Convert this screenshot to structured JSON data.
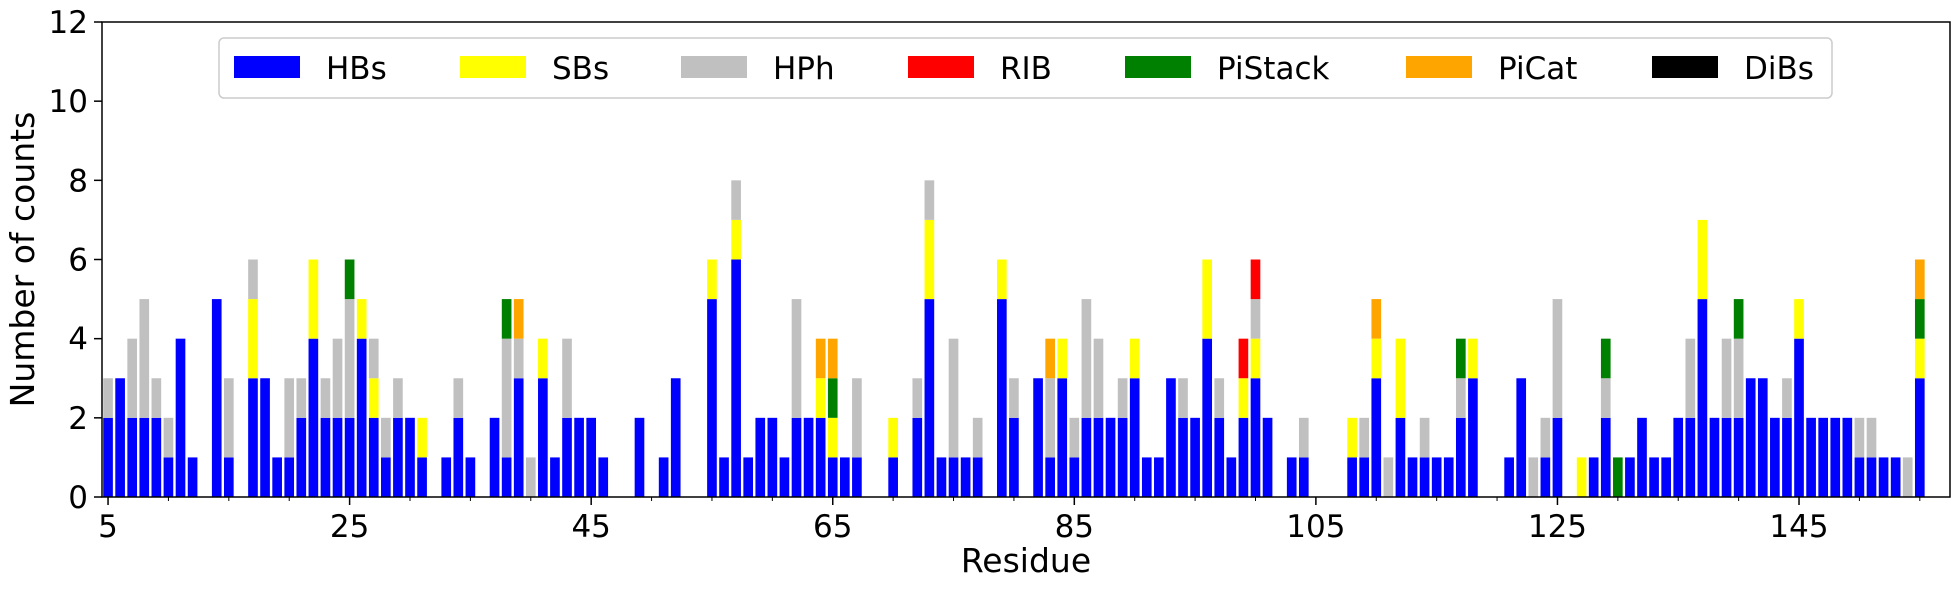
{
  "chart_data": {
    "type": "bar",
    "stacked": true,
    "xlabel": "Residue",
    "ylabel": "Number of counts",
    "xlim": [
      4.5,
      157.5
    ],
    "ylim": [
      0,
      12
    ],
    "x_ticks": [
      5,
      25,
      45,
      65,
      85,
      105,
      125,
      145
    ],
    "y_ticks": [
      0,
      2,
      4,
      6,
      8,
      10,
      12
    ],
    "grid": false,
    "legend_position": "top-center",
    "series": [
      {
        "name": "HBs",
        "color": "#0000ff"
      },
      {
        "name": "SBs",
        "color": "#ffff00"
      },
      {
        "name": "HPh",
        "color": "#c0c0c0"
      },
      {
        "name": "RIB",
        "color": "#ff0000"
      },
      {
        "name": "PiStack",
        "color": "#008000"
      },
      {
        "name": "PiCat",
        "color": "#ffa500"
      },
      {
        "name": "DiBs",
        "color": "#000000"
      }
    ],
    "bars": [
      {
        "x": 5,
        "HBs": 2,
        "HPh": 1
      },
      {
        "x": 6,
        "HBs": 3
      },
      {
        "x": 7,
        "HBs": 2,
        "HPh": 2
      },
      {
        "x": 8,
        "HBs": 2,
        "HPh": 3
      },
      {
        "x": 9,
        "HBs": 2,
        "HPh": 1
      },
      {
        "x": 10,
        "HBs": 1,
        "HPh": 1
      },
      {
        "x": 11,
        "HBs": 4
      },
      {
        "x": 12,
        "HBs": 1
      },
      {
        "x": 14,
        "HBs": 5
      },
      {
        "x": 15,
        "HBs": 1,
        "HPh": 2
      },
      {
        "x": 17,
        "HBs": 3,
        "SBs": 2,
        "HPh": 1
      },
      {
        "x": 18,
        "HBs": 3
      },
      {
        "x": 19,
        "HBs": 1
      },
      {
        "x": 20,
        "HBs": 1,
        "HPh": 2
      },
      {
        "x": 21,
        "HBs": 2,
        "HPh": 1
      },
      {
        "x": 22,
        "HBs": 4,
        "SBs": 2
      },
      {
        "x": 23,
        "HBs": 2,
        "HPh": 1
      },
      {
        "x": 24,
        "HBs": 2,
        "HPh": 2
      },
      {
        "x": 25,
        "HBs": 2,
        "HPh": 3,
        "PiStack": 1
      },
      {
        "x": 26,
        "HBs": 4,
        "SBs": 1
      },
      {
        "x": 27,
        "HBs": 2,
        "SBs": 1,
        "HPh": 1
      },
      {
        "x": 28,
        "HBs": 1,
        "HPh": 1
      },
      {
        "x": 29,
        "HBs": 2,
        "HPh": 1
      },
      {
        "x": 30,
        "HBs": 2
      },
      {
        "x": 31,
        "HBs": 1,
        "SBs": 1
      },
      {
        "x": 33,
        "HBs": 1
      },
      {
        "x": 34,
        "HBs": 2,
        "HPh": 1
      },
      {
        "x": 35,
        "HBs": 1
      },
      {
        "x": 37,
        "HBs": 2
      },
      {
        "x": 38,
        "HBs": 1,
        "HPh": 3,
        "PiStack": 1
      },
      {
        "x": 39,
        "HBs": 3,
        "HPh": 1,
        "PiCat": 1
      },
      {
        "x": 40,
        "HPh": 1
      },
      {
        "x": 41,
        "HBs": 3,
        "SBs": 1
      },
      {
        "x": 42,
        "HBs": 1
      },
      {
        "x": 43,
        "HBs": 2,
        "HPh": 2
      },
      {
        "x": 44,
        "HBs": 2
      },
      {
        "x": 45,
        "HBs": 2
      },
      {
        "x": 46,
        "HBs": 1
      },
      {
        "x": 49,
        "HBs": 2
      },
      {
        "x": 51,
        "HBs": 1
      },
      {
        "x": 52,
        "HBs": 3
      },
      {
        "x": 55,
        "HBs": 5,
        "SBs": 1
      },
      {
        "x": 56,
        "HBs": 1
      },
      {
        "x": 57,
        "HBs": 6,
        "SBs": 1,
        "HPh": 1
      },
      {
        "x": 58,
        "HBs": 1
      },
      {
        "x": 59,
        "HBs": 2
      },
      {
        "x": 60,
        "HBs": 2
      },
      {
        "x": 61,
        "HBs": 1
      },
      {
        "x": 62,
        "HBs": 2,
        "HPh": 3
      },
      {
        "x": 63,
        "HBs": 2
      },
      {
        "x": 64,
        "HBs": 2,
        "SBs": 1,
        "PiCat": 1
      },
      {
        "x": 65,
        "HBs": 1,
        "SBs": 1,
        "PiStack": 1,
        "PiCat": 1
      },
      {
        "x": 66,
        "HBs": 1
      },
      {
        "x": 67,
        "HBs": 1,
        "HPh": 2
      },
      {
        "x": 70,
        "HBs": 1,
        "SBs": 1
      },
      {
        "x": 72,
        "HBs": 2,
        "HPh": 1
      },
      {
        "x": 73,
        "HBs": 5,
        "SBs": 2,
        "HPh": 1
      },
      {
        "x": 74,
        "HBs": 1
      },
      {
        "x": 75,
        "HBs": 1,
        "HPh": 3
      },
      {
        "x": 76,
        "HBs": 1
      },
      {
        "x": 77,
        "HBs": 1,
        "HPh": 1
      },
      {
        "x": 79,
        "HBs": 5,
        "SBs": 1
      },
      {
        "x": 80,
        "HBs": 2,
        "HPh": 1
      },
      {
        "x": 82,
        "HBs": 3
      },
      {
        "x": 83,
        "HBs": 1,
        "HPh": 2,
        "PiCat": 1
      },
      {
        "x": 84,
        "HBs": 3,
        "SBs": 1
      },
      {
        "x": 85,
        "HBs": 1,
        "HPh": 1
      },
      {
        "x": 86,
        "HBs": 2,
        "HPh": 3
      },
      {
        "x": 87,
        "HBs": 2,
        "HPh": 2
      },
      {
        "x": 88,
        "HBs": 2
      },
      {
        "x": 89,
        "HBs": 2,
        "HPh": 1
      },
      {
        "x": 90,
        "HBs": 3,
        "SBs": 1
      },
      {
        "x": 91,
        "HBs": 1
      },
      {
        "x": 92,
        "HBs": 1
      },
      {
        "x": 93,
        "HBs": 3
      },
      {
        "x": 94,
        "HBs": 2,
        "HPh": 1
      },
      {
        "x": 95,
        "HBs": 2
      },
      {
        "x": 96,
        "HBs": 4,
        "SBs": 2
      },
      {
        "x": 97,
        "HBs": 2,
        "HPh": 1
      },
      {
        "x": 98,
        "HBs": 1
      },
      {
        "x": 99,
        "HBs": 2,
        "SBs": 1,
        "RIB": 1
      },
      {
        "x": 100,
        "HBs": 3,
        "SBs": 1,
        "HPh": 1,
        "RIB": 1
      },
      {
        "x": 101,
        "HBs": 2
      },
      {
        "x": 103,
        "HBs": 1
      },
      {
        "x": 104,
        "HBs": 1,
        "HPh": 1
      },
      {
        "x": 108,
        "HBs": 1,
        "SBs": 1
      },
      {
        "x": 109,
        "HBs": 1,
        "HPh": 1
      },
      {
        "x": 110,
        "HBs": 3,
        "SBs": 1,
        "PiCat": 1
      },
      {
        "x": 111,
        "HPh": 1
      },
      {
        "x": 112,
        "HBs": 2,
        "SBs": 2
      },
      {
        "x": 113,
        "HBs": 1
      },
      {
        "x": 114,
        "HBs": 1,
        "HPh": 1
      },
      {
        "x": 115,
        "HBs": 1
      },
      {
        "x": 116,
        "HBs": 1
      },
      {
        "x": 117,
        "HBs": 2,
        "HPh": 1,
        "PiStack": 1
      },
      {
        "x": 118,
        "HBs": 3,
        "SBs": 1
      },
      {
        "x": 121,
        "HBs": 1
      },
      {
        "x": 122,
        "HBs": 3
      },
      {
        "x": 123,
        "HPh": 1
      },
      {
        "x": 124,
        "HBs": 1,
        "HPh": 1
      },
      {
        "x": 125,
        "HBs": 2,
        "HPh": 3
      },
      {
        "x": 127,
        "SBs": 1
      },
      {
        "x": 128,
        "HBs": 1
      },
      {
        "x": 129,
        "HBs": 2,
        "HPh": 1,
        "PiStack": 1
      },
      {
        "x": 130,
        "PiStack": 1
      },
      {
        "x": 131,
        "HBs": 1
      },
      {
        "x": 132,
        "HBs": 2
      },
      {
        "x": 133,
        "HBs": 1
      },
      {
        "x": 134,
        "HBs": 1
      },
      {
        "x": 135,
        "HBs": 2
      },
      {
        "x": 136,
        "HBs": 2,
        "HPh": 2
      },
      {
        "x": 137,
        "HBs": 5,
        "SBs": 2
      },
      {
        "x": 138,
        "HBs": 2
      },
      {
        "x": 139,
        "HBs": 2,
        "HPh": 2
      },
      {
        "x": 140,
        "HBs": 2,
        "HPh": 2,
        "PiStack": 1
      },
      {
        "x": 141,
        "HBs": 3
      },
      {
        "x": 142,
        "HBs": 3
      },
      {
        "x": 143,
        "HBs": 2
      },
      {
        "x": 144,
        "HBs": 2,
        "HPh": 1
      },
      {
        "x": 145,
        "HBs": 4,
        "SBs": 1
      },
      {
        "x": 146,
        "HBs": 2
      },
      {
        "x": 147,
        "HBs": 2
      },
      {
        "x": 148,
        "HBs": 2
      },
      {
        "x": 149,
        "HBs": 2
      },
      {
        "x": 150,
        "HBs": 1,
        "HPh": 1
      },
      {
        "x": 151,
        "HBs": 1,
        "HPh": 1
      },
      {
        "x": 152,
        "HBs": 1
      },
      {
        "x": 153,
        "HBs": 1
      },
      {
        "x": 154,
        "HPh": 1
      },
      {
        "x": 155,
        "HBs": 3,
        "SBs": 1,
        "PiStack": 1,
        "PiCat": 1
      }
    ]
  }
}
